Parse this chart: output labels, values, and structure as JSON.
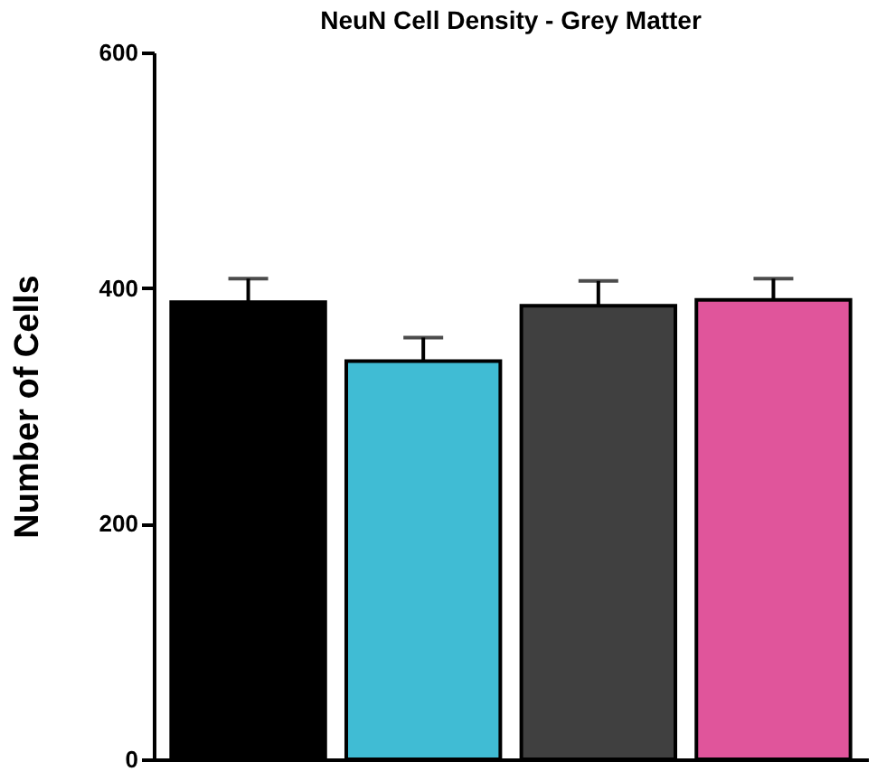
{
  "chart_data": {
    "type": "bar",
    "title": "NeuN Cell Density - Grey  Matter",
    "ylabel": "Number of  Cells",
    "categories": [
      null,
      null,
      null,
      null
    ],
    "values": [
      388,
      338,
      385,
      390
    ],
    "colors": [
      "#000000",
      "#40bcd4",
      "#404040",
      "#e0559b"
    ],
    "errors": [
      [
        388,
        408
      ],
      [
        338,
        358
      ],
      [
        385,
        406
      ],
      [
        390,
        408
      ]
    ],
    "ylim": [
      0,
      600
    ],
    "yticks": [
      0,
      200,
      400,
      600
    ],
    "grid": false
  }
}
